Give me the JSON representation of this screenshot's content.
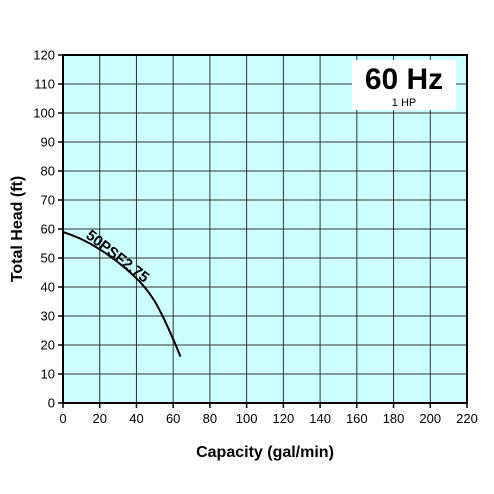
{
  "chart_data": {
    "type": "line",
    "xlabel": "Capacity (gal/min)",
    "ylabel": "Total Head (ft)",
    "xlim": [
      0,
      220
    ],
    "ylim": [
      0,
      120
    ],
    "xticks": [
      0,
      20,
      40,
      60,
      80,
      100,
      120,
      140,
      160,
      180,
      200,
      220
    ],
    "yticks": [
      0,
      10,
      20,
      30,
      40,
      50,
      60,
      70,
      80,
      90,
      100,
      110,
      120
    ],
    "grid": true,
    "background_color": "#ccffff",
    "line_color": "#000000",
    "annotations": {
      "frequency": "60 Hz",
      "horsepower": "1 HP"
    },
    "series": [
      {
        "name": "50PSF2.75",
        "x": [
          0,
          10,
          20,
          30,
          40,
          45,
          50,
          55,
          60,
          64
        ],
        "y": [
          59,
          56.5,
          53,
          48.5,
          43,
          39.5,
          35,
          29,
          22,
          16
        ]
      }
    ]
  }
}
